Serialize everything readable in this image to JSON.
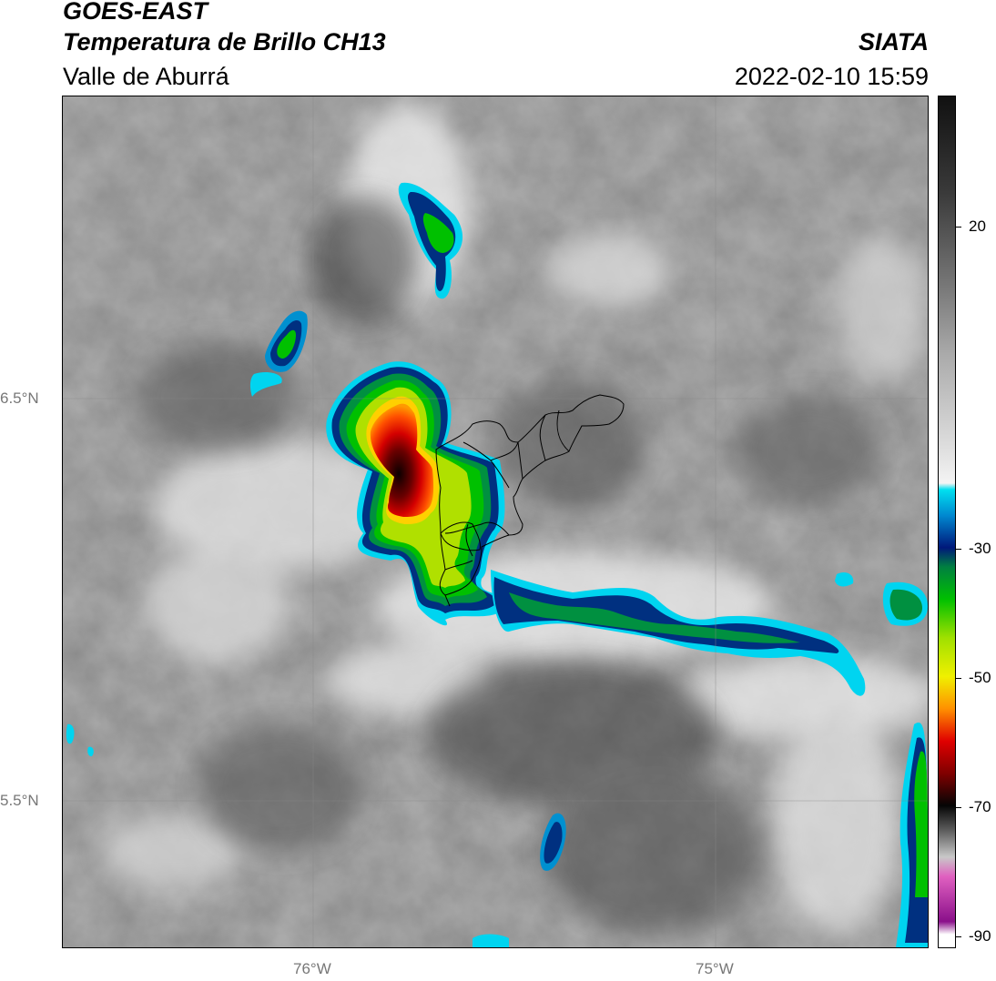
{
  "header": {
    "satellite": "GOES-EAST",
    "product": "Temperatura de Brillo CH13",
    "region": "Valle de Aburrá",
    "agency": "SIATA",
    "datetime": "2022-02-10 15:59"
  },
  "map": {
    "lat_labels": [
      "6.5°N",
      "5.5°N"
    ],
    "lon_labels": [
      "76°W",
      "75°W"
    ]
  },
  "colorbar": {
    "tick_labels": [
      "20",
      "-30",
      "-50",
      "-70",
      "-90"
    ],
    "min": -92,
    "max": 40,
    "stops": [
      {
        "value": 40,
        "color": "#111111"
      },
      {
        "value": 25,
        "color": "#3a3a3a"
      },
      {
        "value": 10,
        "color": "#7a7a7a"
      },
      {
        "value": 0,
        "color": "#aaaaaa"
      },
      {
        "value": -15,
        "color": "#e0e0e0"
      },
      {
        "value": -20,
        "color": "#f4f4f4"
      },
      {
        "value": -21,
        "color": "#00e0f0"
      },
      {
        "value": -25,
        "color": "#0088d0"
      },
      {
        "value": -30,
        "color": "#00187a"
      },
      {
        "value": -33,
        "color": "#008040"
      },
      {
        "value": -38,
        "color": "#00c000"
      },
      {
        "value": -44,
        "color": "#a0e000"
      },
      {
        "value": -50,
        "color": "#f0f000"
      },
      {
        "value": -55,
        "color": "#ff9000"
      },
      {
        "value": -60,
        "color": "#e00000"
      },
      {
        "value": -65,
        "color": "#800000"
      },
      {
        "value": -70,
        "color": "#050505"
      },
      {
        "value": -74,
        "color": "#606060"
      },
      {
        "value": -78,
        "color": "#c8c8c8"
      },
      {
        "value": -81,
        "color": "#e060c0"
      },
      {
        "value": -88,
        "color": "#8a108a"
      },
      {
        "value": -90,
        "color": "#ffffff"
      },
      {
        "value": -92,
        "color": "#ffffff"
      }
    ]
  }
}
